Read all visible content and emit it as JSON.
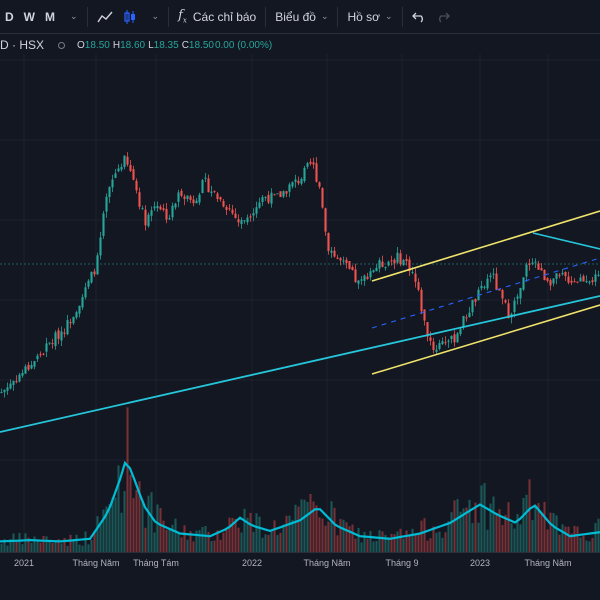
{
  "toolbar": {
    "interval_d": "D",
    "interval_w": "W",
    "interval_m": "M",
    "indicators_label": "Các chỉ báo",
    "layout_label": "Biểu đồ",
    "profile_label": "Hồ sơ",
    "icons": [
      "line-chart-icon",
      "candles-icon",
      "formula-icon",
      "undo-icon",
      "redo-icon",
      "chevron-down-icon"
    ]
  },
  "legend": {
    "symbol": "D · HSX",
    "o_label": "O",
    "o_value": "18.50",
    "h_label": "H",
    "h_value": "18.60",
    "l_label": "L",
    "l_value": "18.35",
    "c_label": "C",
    "c_value": "18.50",
    "change": "0.00 (0.00%)"
  },
  "colors": {
    "background": "#131722",
    "up": "#26a69a",
    "down": "#ef5350",
    "trendline_cyan": "#26c6da",
    "channel_yellow": "#f0e36b",
    "volume_ma": "#00bcd4"
  },
  "chart_data": {
    "type": "candlestick",
    "x_ticks": [
      "2021",
      "Tháng Năm",
      "Tháng Tám",
      "2022",
      "Tháng Năm",
      "Tháng 9",
      "2023",
      "Tháng Năm"
    ],
    "price_path": [
      [
        0,
        10
      ],
      [
        0.02,
        14
      ],
      [
        0.05,
        20
      ],
      [
        0.08,
        27
      ],
      [
        0.11,
        34
      ],
      [
        0.14,
        46
      ],
      [
        0.16,
        56
      ],
      [
        0.175,
        78
      ],
      [
        0.19,
        88
      ],
      [
        0.205,
        93
      ],
      [
        0.22,
        87
      ],
      [
        0.24,
        71
      ],
      [
        0.26,
        78
      ],
      [
        0.28,
        72
      ],
      [
        0.3,
        82
      ],
      [
        0.32,
        78
      ],
      [
        0.34,
        85
      ],
      [
        0.36,
        80
      ],
      [
        0.38,
        76
      ],
      [
        0.4,
        70
      ],
      [
        0.42,
        75
      ],
      [
        0.44,
        80
      ],
      [
        0.46,
        79
      ],
      [
        0.48,
        83
      ],
      [
        0.5,
        86
      ],
      [
        0.52,
        92
      ],
      [
        0.535,
        82
      ],
      [
        0.545,
        63
      ],
      [
        0.56,
        58
      ],
      [
        0.58,
        54
      ],
      [
        0.6,
        48
      ],
      [
        0.615,
        53
      ],
      [
        0.63,
        55
      ],
      [
        0.65,
        57
      ],
      [
        0.665,
        58
      ],
      [
        0.68,
        56
      ],
      [
        0.69,
        52
      ],
      [
        0.7,
        44
      ],
      [
        0.71,
        33
      ],
      [
        0.725,
        25
      ],
      [
        0.74,
        29
      ],
      [
        0.755,
        28
      ],
      [
        0.77,
        34
      ],
      [
        0.79,
        42
      ],
      [
        0.81,
        48
      ],
      [
        0.82,
        53
      ],
      [
        0.835,
        44
      ],
      [
        0.85,
        38
      ],
      [
        0.87,
        46
      ],
      [
        0.88,
        55
      ],
      [
        0.89,
        58
      ],
      [
        0.905,
        52
      ],
      [
        0.92,
        50
      ],
      [
        0.94,
        51
      ],
      [
        0.96,
        50
      ],
      [
        0.98,
        51
      ],
      [
        1,
        50
      ]
    ],
    "volume_ma_path": [
      [
        0,
        8
      ],
      [
        0.05,
        9
      ],
      [
        0.1,
        8
      ],
      [
        0.15,
        10
      ],
      [
        0.18,
        30
      ],
      [
        0.2,
        55
      ],
      [
        0.21,
        70
      ],
      [
        0.22,
        60
      ],
      [
        0.24,
        35
      ],
      [
        0.26,
        22
      ],
      [
        0.3,
        14
      ],
      [
        0.35,
        12
      ],
      [
        0.38,
        18
      ],
      [
        0.4,
        26
      ],
      [
        0.42,
        20
      ],
      [
        0.45,
        16
      ],
      [
        0.5,
        24
      ],
      [
        0.53,
        34
      ],
      [
        0.56,
        20
      ],
      [
        0.6,
        12
      ],
      [
        0.65,
        10
      ],
      [
        0.7,
        14
      ],
      [
        0.75,
        22
      ],
      [
        0.8,
        36
      ],
      [
        0.83,
        28
      ],
      [
        0.86,
        22
      ],
      [
        0.89,
        36
      ],
      [
        0.92,
        20
      ],
      [
        0.95,
        12
      ],
      [
        1,
        15
      ]
    ]
  }
}
